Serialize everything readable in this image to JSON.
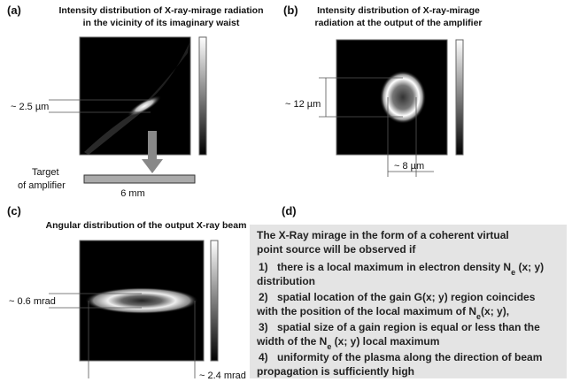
{
  "panels": {
    "a": {
      "label": "(a)",
      "title": [
        "Intensity distribution of X-ray-mirage radiation",
        "in the vicinity of its imaginary waist"
      ],
      "size_label": "~ 2.5 µm",
      "target": [
        "Target",
        "of amplifier"
      ],
      "length_label": "6 mm"
    },
    "b": {
      "label": "(b)",
      "title": [
        "Intensity distribution of X-ray-mirage",
        "radiation at the output of the amplifier"
      ],
      "height_label": "~ 12 µm",
      "width_label": "~ 8 µm"
    },
    "c": {
      "label": "(c)",
      "title": "Angular distribution of the output X-ray beam",
      "height_label": "~ 0.6 mrad",
      "width_label": "~ 2.4 mrad"
    },
    "d": {
      "label": "(d)",
      "heading": [
        "The X-Ray mirage in the form of a coherent virtual",
        "point source will be observed if"
      ],
      "items": [
        {
          "num": "1)",
          "lines": [
            [
              {
                "text": "there is a local maximum in electron density N"
              },
              {
                "sub": "e"
              },
              {
                "text": " (x; y)"
              }
            ],
            [
              {
                "text": "distribution"
              }
            ]
          ]
        },
        {
          "num": "2)",
          "lines": [
            [
              {
                "text": "spatial location of  the gain G(x; y) region coincides"
              }
            ],
            [
              {
                "text": "with the position of the local maximum of N"
              },
              {
                "sub": "e"
              },
              {
                "text": "(x; y),"
              }
            ]
          ]
        },
        {
          "num": "3)",
          "lines": [
            [
              {
                "text": "spatial size of a gain region is equal or less than the"
              }
            ],
            [
              {
                "text": "width of the N"
              },
              {
                "sub": "e"
              },
              {
                "text": " (x; y) local maximum"
              }
            ]
          ]
        },
        {
          "num": "4)",
          "lines": [
            [
              {
                "text": " uniformity of the plasma along the direction of beam"
              }
            ],
            [
              {
                "text": "propagation is  sufficiently high"
              }
            ]
          ]
        }
      ]
    }
  }
}
